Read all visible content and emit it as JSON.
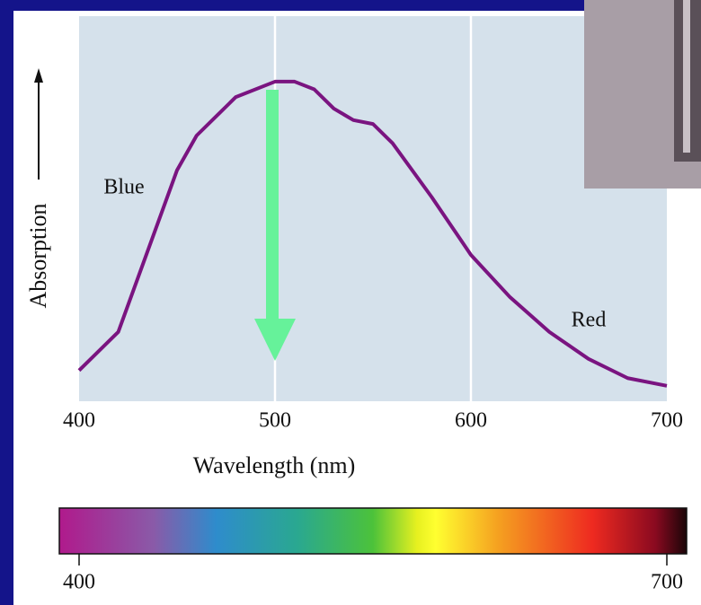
{
  "chart_data": {
    "type": "line",
    "x_label": "Wavelength (nm)",
    "y_label": "Absorption",
    "x": [
      400,
      420,
      440,
      450,
      460,
      480,
      500,
      510,
      520,
      530,
      540,
      550,
      560,
      580,
      600,
      620,
      640,
      660,
      680,
      700
    ],
    "series": [
      {
        "color": "#7a1480",
        "values": [
          0.08,
          0.18,
          0.46,
          0.6,
          0.69,
          0.79,
          0.83,
          0.83,
          0.81,
          0.76,
          0.73,
          0.72,
          0.67,
          0.53,
          0.38,
          0.27,
          0.18,
          0.11,
          0.06,
          0.04
        ]
      }
    ],
    "xlim": [
      400,
      700
    ],
    "ylim": [
      0,
      1
    ],
    "xticks": [
      400,
      500,
      600,
      700
    ],
    "grid": true,
    "annotations": [
      "Blue",
      "Red"
    ],
    "color_bar": {
      "ticks": [
        400,
        700
      ]
    }
  }
}
